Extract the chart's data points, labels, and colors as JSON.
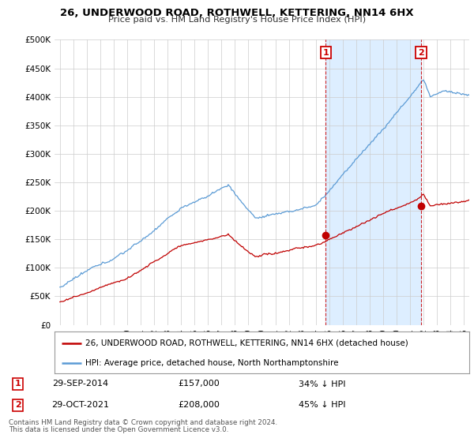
{
  "title": "26, UNDERWOOD ROAD, ROTHWELL, KETTERING, NN14 6HX",
  "subtitle": "Price paid vs. HM Land Registry's House Price Index (HPI)",
  "ylim": [
    0,
    500000
  ],
  "yticks": [
    0,
    50000,
    100000,
    150000,
    200000,
    250000,
    300000,
    350000,
    400000,
    450000,
    500000
  ],
  "ytick_labels": [
    "£0",
    "£50K",
    "£100K",
    "£150K",
    "£200K",
    "£250K",
    "£300K",
    "£350K",
    "£400K",
    "£450K",
    "£500K"
  ],
  "hpi_color": "#5b9bd5",
  "price_color": "#c00000",
  "annotation_color": "#cc0000",
  "shade_color": "#ddeeff",
  "background_color": "#ffffff",
  "grid_color": "#cccccc",
  "sale1_year": 2014.75,
  "sale1_price": 157000,
  "sale2_year": 2021.83,
  "sale2_price": 208000,
  "legend_entry1": "26, UNDERWOOD ROAD, ROTHWELL, KETTERING, NN14 6HX (detached house)",
  "legend_entry2": "HPI: Average price, detached house, North Northamptonshire",
  "footer1": "Contains HM Land Registry data © Crown copyright and database right 2024.",
  "footer2": "This data is licensed under the Open Government Licence v3.0.",
  "table_row1": [
    "1",
    "29-SEP-2014",
    "£157,000",
    "34% ↓ HPI"
  ],
  "table_row2": [
    "2",
    "29-OCT-2021",
    "£208,000",
    "45% ↓ HPI"
  ]
}
